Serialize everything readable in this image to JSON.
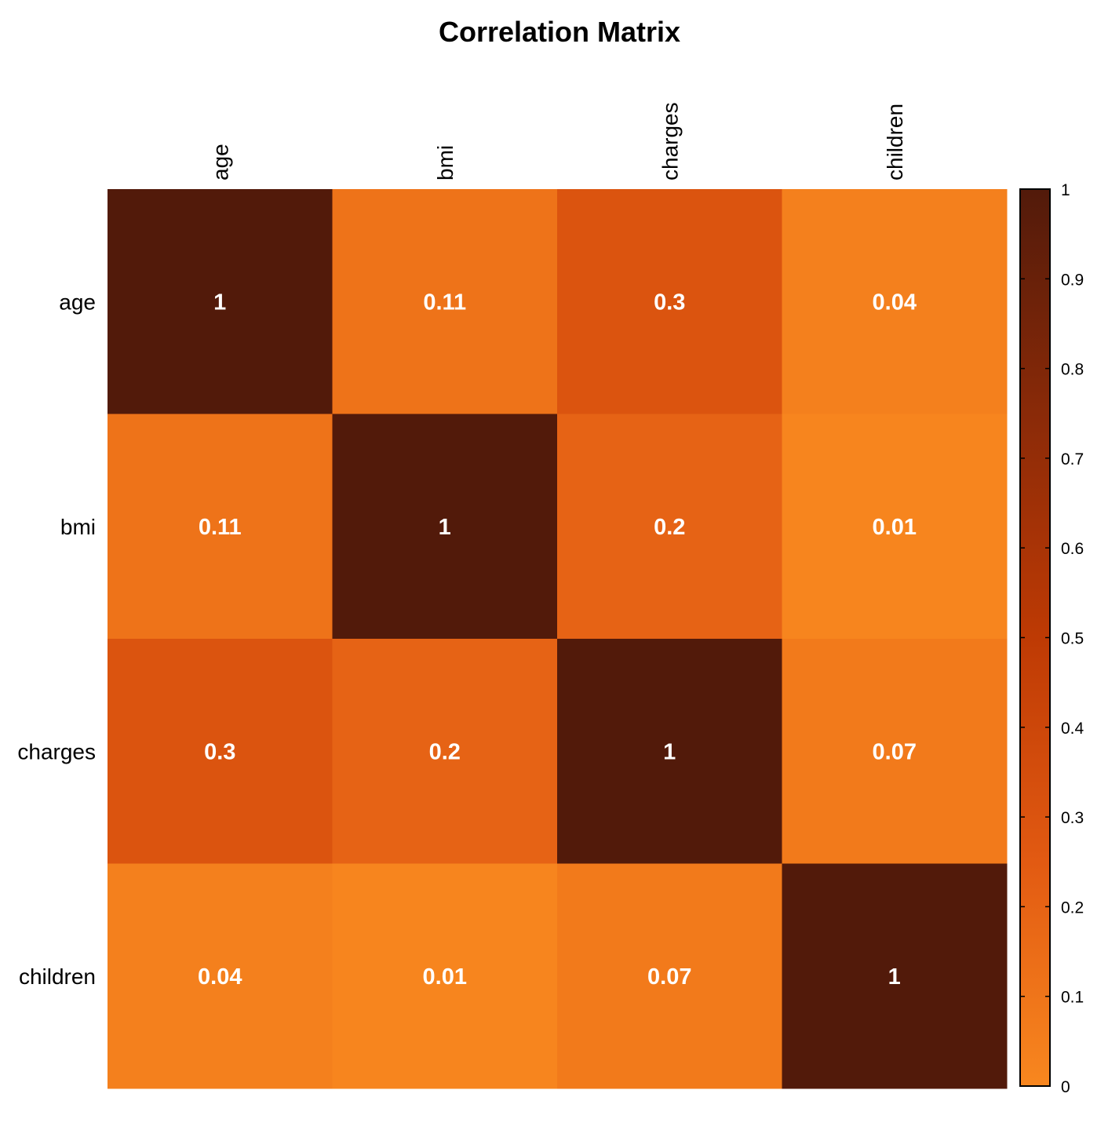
{
  "chart_data": {
    "type": "heatmap",
    "title": "Correlation Matrix",
    "variables": [
      "age",
      "bmi",
      "charges",
      "children"
    ],
    "matrix": [
      [
        1,
        0.11,
        0.3,
        0.04
      ],
      [
        0.11,
        1,
        0.2,
        0.01
      ],
      [
        0.3,
        0.2,
        1,
        0.07
      ],
      [
        0.04,
        0.01,
        0.07,
        1
      ]
    ],
    "colorbar": {
      "range": [
        0,
        1
      ],
      "ticks": [
        "0",
        "0.1",
        "0.2",
        "0.3",
        "0.4",
        "0.5",
        "0.6",
        "0.7",
        "0.8",
        "0.9",
        "1"
      ],
      "colors": [
        "#F8871F",
        "#E25A12",
        "#BE3A04",
        "#8A2A08",
        "#521A0A"
      ]
    },
    "legend_placement": "right",
    "grid": false
  }
}
